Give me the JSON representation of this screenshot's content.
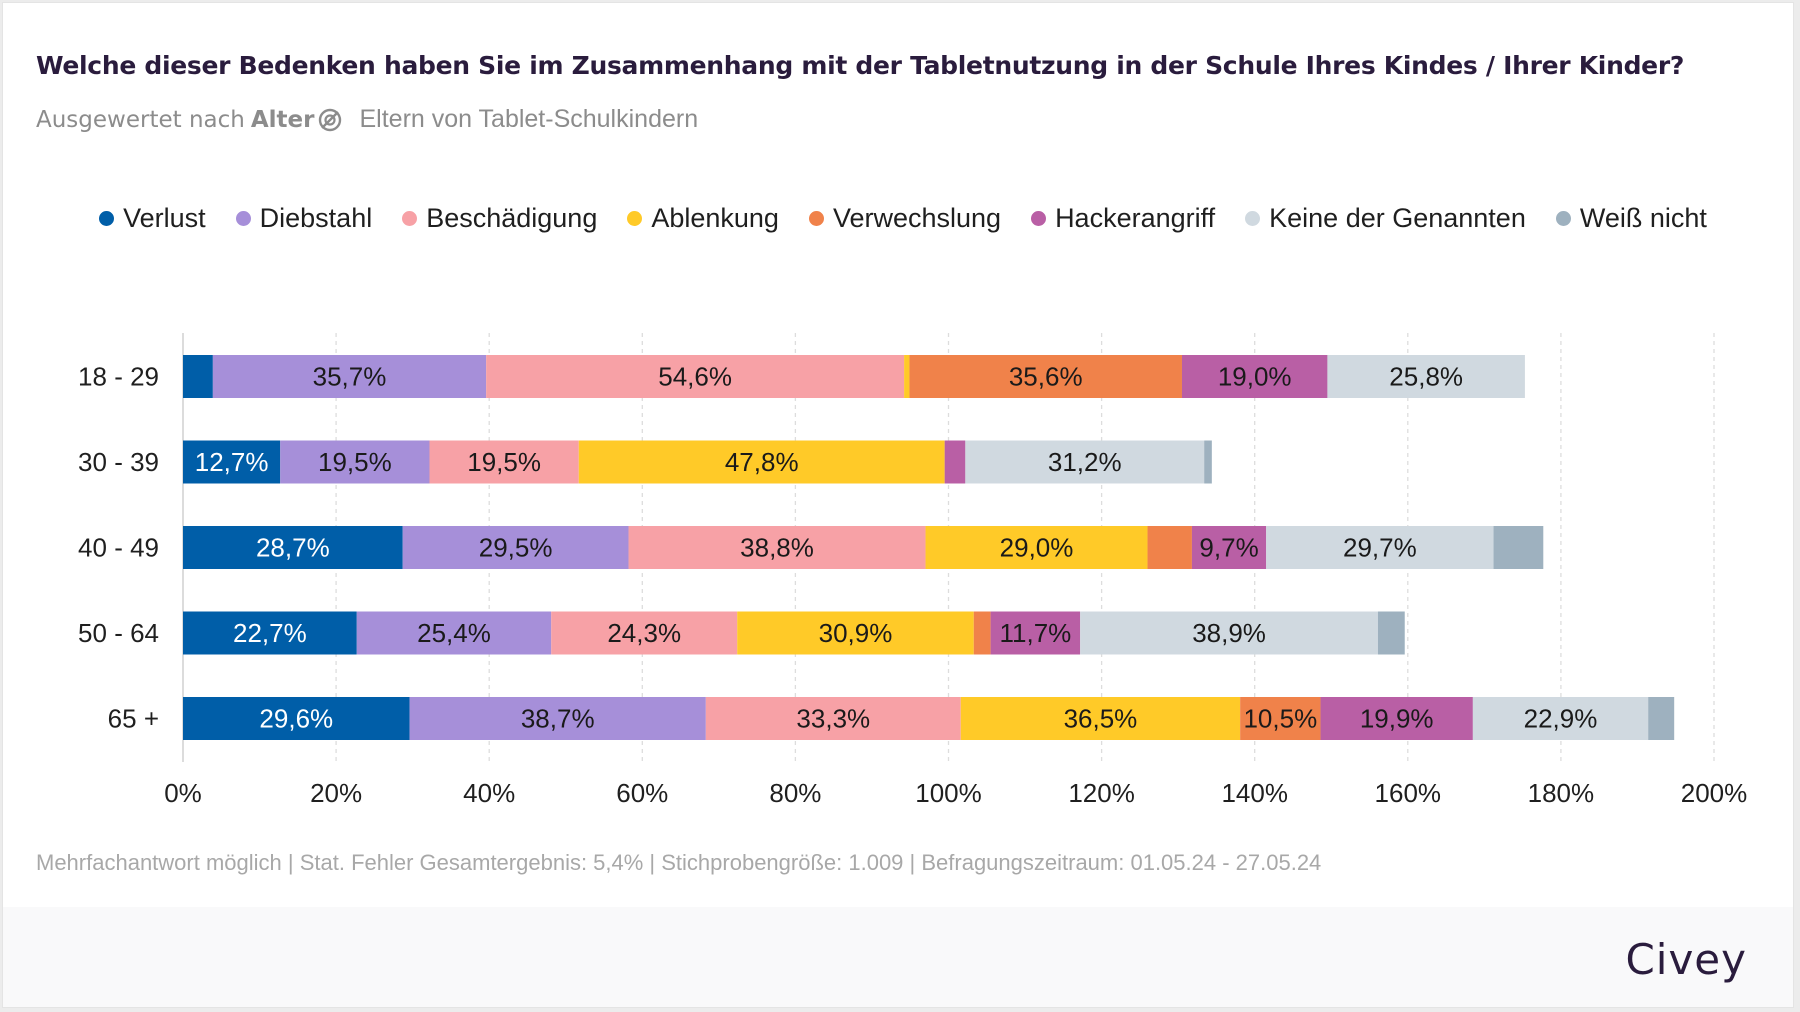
{
  "header": {
    "title": "Welche dieser Bedenken haben Sie im Zusammenhang mit der Tabletnutzung in der Schule Ihres Kindes / Ihrer Kinder?",
    "subtitle_prefix": "Ausgewertet nach",
    "subtitle_dimension": "Alter",
    "subtitle_icon": "filter-off-icon",
    "subtitle_group": "Eltern von Tablet-Schulkindern"
  },
  "footer": {
    "note": "Mehrfachantwort möglich | Stat. Fehler Gesamtergebnis: 5,4% | Stichprobengröße: 1.009 | Befragungszeitraum: 01.05.24 - 27.05.24",
    "brand": "Civey"
  },
  "chart_data": {
    "type": "bar",
    "orientation": "horizontal",
    "stacked": true,
    "title": "Welche dieser Bedenken haben Sie im Zusammenhang mit der Tabletnutzung in der Schule Ihres Kindes / Ihrer Kinder?",
    "xlabel": "",
    "ylabel": "",
    "xlim": [
      0,
      200
    ],
    "x_ticks": [
      "0%",
      "20%",
      "40%",
      "60%",
      "80%",
      "100%",
      "120%",
      "140%",
      "160%",
      "180%",
      "200%"
    ],
    "grid": "vertical-dashed",
    "legend_position": "top-center",
    "categories": [
      "18 - 29",
      "30 - 39",
      "40 - 49",
      "50 - 64",
      "65 +"
    ],
    "series": [
      {
        "name": "Verlust",
        "color": "#005ea8",
        "label_color": "#ffffff",
        "values": [
          3.9,
          12.7,
          28.7,
          22.7,
          29.6
        ]
      },
      {
        "name": "Diebstahl",
        "color": "#a68fd9",
        "label_color": "#1a1a1a",
        "values": [
          35.7,
          19.5,
          29.5,
          25.4,
          38.7
        ]
      },
      {
        "name": "Beschädigung",
        "color": "#f7a1a6",
        "label_color": "#1a1a1a",
        "values": [
          54.6,
          19.5,
          38.8,
          24.3,
          33.3
        ]
      },
      {
        "name": "Ablenkung",
        "color": "#ffca28",
        "label_color": "#1a1a1a",
        "values": [
          0.7,
          47.8,
          29.0,
          30.9,
          36.5
        ]
      },
      {
        "name": "Verwechslung",
        "color": "#f0824a",
        "label_color": "#1a1a1a",
        "values": [
          35.6,
          0.0,
          5.8,
          2.2,
          10.5
        ]
      },
      {
        "name": "Hackerangriff",
        "color": "#b95fa5",
        "label_color": "#1a1a1a",
        "values": [
          19.0,
          2.7,
          9.7,
          11.7,
          19.9
        ]
      },
      {
        "name": "Keine der Genannten",
        "color": "#d0d9e0",
        "label_color": "#1a1a1a",
        "values": [
          25.8,
          31.2,
          29.7,
          38.9,
          22.9
        ]
      },
      {
        "name": "Weiß nicht",
        "color": "#9eb1bf",
        "label_color": "#1a1a1a",
        "values": [
          0.0,
          1.0,
          6.5,
          3.5,
          3.4
        ]
      }
    ],
    "data_labels": [
      [
        "",
        "35,7%",
        "54,6%",
        "",
        "35,6%",
        "19,0%",
        "25,8%",
        ""
      ],
      [
        "12,7%",
        "19,5%",
        "19,5%",
        "47,8%",
        "",
        "",
        "31,2%",
        ""
      ],
      [
        "28,7%",
        "29,5%",
        "38,8%",
        "29,0%",
        "",
        "9,7%",
        "29,7%",
        ""
      ],
      [
        "22,7%",
        "25,4%",
        "24,3%",
        "30,9%",
        "",
        "11,7%",
        "38,9%",
        ""
      ],
      [
        "29,6%",
        "38,7%",
        "33,3%",
        "36,5%",
        "10,5%",
        "19,9%",
        "22,9%",
        ""
      ]
    ]
  }
}
